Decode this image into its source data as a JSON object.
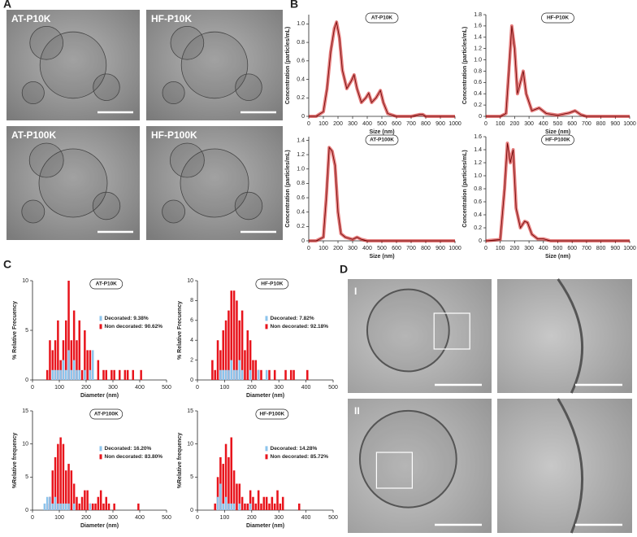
{
  "panels": {
    "A": {
      "label": "A",
      "images": [
        "AT-P10K",
        "HF-P10K",
        "AT-P100K",
        "HF-P100K"
      ]
    },
    "B": {
      "label": "B"
    },
    "C": {
      "label": "C"
    },
    "D": {
      "label": "D",
      "rows": [
        "I",
        "II"
      ]
    }
  },
  "chart_data": [
    {
      "type": "line",
      "title": "AT-P10K",
      "xlabel": "Size (nm)",
      "ylabel": "Concentration (particles/mL)",
      "color": "#d01010",
      "x": [
        0,
        50,
        100,
        125,
        150,
        175,
        190,
        210,
        230,
        260,
        290,
        310,
        330,
        360,
        390,
        410,
        430,
        460,
        490,
        510,
        540,
        600,
        700,
        760,
        780,
        800,
        900,
        1000
      ],
      "values": [
        0,
        0,
        0.05,
        0.3,
        0.7,
        0.95,
        1.02,
        0.85,
        0.5,
        0.3,
        0.38,
        0.45,
        0.3,
        0.15,
        0.2,
        0.25,
        0.15,
        0.2,
        0.28,
        0.15,
        0.03,
        0,
        0,
        0.02,
        0.02,
        0,
        0,
        0
      ],
      "xlim": [
        0,
        1000
      ],
      "xticks": [
        0,
        100,
        200,
        300,
        400,
        500,
        600,
        700,
        800,
        900,
        1000
      ],
      "ylim": [
        0,
        1.1
      ],
      "yticks": [
        0,
        0.2,
        0.4,
        0.6,
        0.8,
        {
          "value": 1,
          "label": "1.0"
        }
      ]
    },
    {
      "type": "line",
      "title": "HF-P10K",
      "xlabel": "Size (nm)",
      "ylabel": "Concentration (particles/mL)",
      "color": "#d01010",
      "x": [
        0,
        100,
        140,
        160,
        180,
        200,
        220,
        240,
        260,
        280,
        320,
        370,
        420,
        500,
        580,
        620,
        660,
        700,
        800,
        1000
      ],
      "values": [
        0,
        0,
        0.05,
        0.8,
        1.6,
        1.2,
        0.4,
        0.6,
        0.8,
        0.4,
        0.1,
        0.15,
        0.05,
        0.02,
        0.06,
        0.1,
        0.03,
        0,
        0,
        0
      ],
      "xlim": [
        0,
        1000
      ],
      "xticks": [
        0,
        100,
        200,
        300,
        400,
        500,
        600,
        700,
        800,
        900,
        1000
      ],
      "ylim": [
        0,
        1.8
      ],
      "yticks": [
        0,
        0.2,
        0.4,
        0.6,
        0.8,
        {
          "value": 1,
          "label": "1.0"
        },
        1.2,
        1.4,
        1.6,
        1.8
      ]
    },
    {
      "type": "line",
      "title": "AT-P100K",
      "xlabel": "Size (nm)",
      "ylabel": "Concentration (particles/mL)",
      "color": "#d01010",
      "x": [
        0,
        50,
        100,
        120,
        140,
        160,
        180,
        200,
        220,
        250,
        300,
        330,
        360,
        400,
        500,
        700,
        1000
      ],
      "values": [
        0,
        0,
        0.05,
        0.6,
        1.3,
        1.25,
        1.05,
        0.4,
        0.1,
        0.05,
        0.02,
        0.05,
        0.02,
        0,
        0,
        0,
        0
      ],
      "xlim": [
        0,
        1000
      ],
      "xticks": [
        0,
        100,
        200,
        300,
        400,
        500,
        600,
        700,
        800,
        900,
        1000
      ],
      "ylim": [
        0,
        1.45
      ],
      "yticks": [
        0,
        0.2,
        0.4,
        0.6,
        0.8,
        {
          "value": 1,
          "label": "1.0"
        },
        1.2,
        1.4
      ]
    },
    {
      "type": "line",
      "title": "HF-P100K",
      "xlabel": "Size (nm)",
      "ylabel": "Concentration (particles/mL)",
      "color": "#d01010",
      "x": [
        0,
        100,
        130,
        150,
        170,
        190,
        210,
        240,
        270,
        290,
        320,
        360,
        400,
        450,
        550,
        1000
      ],
      "values": [
        0,
        0.02,
        0.8,
        1.5,
        1.2,
        1.4,
        0.5,
        0.2,
        0.3,
        0.28,
        0.1,
        0.03,
        0.03,
        0,
        0,
        0
      ],
      "xlim": [
        0,
        1000
      ],
      "xticks": [
        0,
        100,
        200,
        300,
        400,
        500,
        600,
        700,
        800,
        900,
        1000
      ],
      "ylim": [
        0,
        1.6
      ],
      "yticks": [
        0,
        0.2,
        0.4,
        0.6,
        0.8,
        {
          "value": 1,
          "label": "1.0"
        },
        1.2,
        1.4,
        1.6
      ]
    },
    {
      "type": "histogram",
      "title": "AT-P10K",
      "xlabel": "Diameter (nm)",
      "ylabel": "% Relative Frecuency",
      "bins": [
        40,
        50,
        60,
        70,
        80,
        90,
        100,
        110,
        120,
        130,
        140,
        150,
        160,
        170,
        180,
        190,
        200,
        210,
        220,
        230,
        240,
        250,
        260,
        270,
        280,
        290,
        300,
        310,
        320,
        330,
        340,
        350,
        360,
        370,
        380,
        390,
        400,
        410,
        420
      ],
      "series": [
        {
          "name": "Non decorated: 90.62%",
          "color": "#e8141c",
          "values": [
            0,
            1,
            4,
            3,
            4,
            6,
            2,
            4,
            6,
            10,
            4,
            7,
            4,
            6,
            1,
            5,
            3,
            3,
            2,
            0,
            2,
            0,
            1,
            1,
            0,
            1,
            1,
            0,
            1,
            0,
            1,
            1,
            0,
            1,
            0,
            0,
            1,
            0
          ]
        },
        {
          "name": "Decorated: 9.38%",
          "color": "#8cc4ec",
          "values": [
            0,
            0,
            0,
            1,
            1,
            1,
            1,
            2,
            1,
            3,
            1,
            2,
            1,
            1,
            0,
            1,
            0,
            1,
            3,
            0,
            0,
            0,
            0,
            0,
            0,
            0,
            0,
            0,
            0,
            0,
            0,
            0,
            0,
            0,
            0,
            0,
            0,
            0
          ]
        }
      ],
      "xlim": [
        0,
        500
      ],
      "xticks": [
        0,
        100,
        200,
        300,
        400,
        500
      ],
      "ylim": [
        0,
        10
      ],
      "yticks": [
        0,
        5,
        10
      ]
    },
    {
      "type": "histogram",
      "title": "HF-P10K",
      "xlabel": "Diameter (nm)",
      "ylabel": "% Relative Frecuency",
      "bins": [
        40,
        50,
        60,
        70,
        80,
        90,
        100,
        110,
        120,
        130,
        140,
        150,
        160,
        170,
        180,
        190,
        200,
        210,
        220,
        230,
        240,
        250,
        260,
        270,
        280,
        290,
        300,
        310,
        320,
        330,
        340,
        350,
        360,
        370,
        380,
        390,
        400,
        410,
        420
      ],
      "series": [
        {
          "name": "Non decorated: 92.18%",
          "color": "#e8141c",
          "values": [
            0,
            2,
            1,
            4,
            3,
            5,
            6,
            7,
            9,
            9,
            8,
            6,
            7,
            3,
            5,
            4,
            2,
            2,
            1,
            1,
            0,
            0,
            1,
            0,
            1,
            0,
            0,
            0,
            1,
            0,
            1,
            1,
            0,
            0,
            0,
            0,
            1,
            0
          ]
        },
        {
          "name": "Decorated: 7.82%",
          "color": "#8cc4ec",
          "values": [
            0,
            0,
            0,
            0,
            1,
            1,
            1,
            1,
            2,
            1,
            1,
            2,
            1,
            0,
            0,
            1,
            0,
            0,
            1,
            0,
            0,
            1,
            0,
            0,
            0,
            0,
            0,
            0,
            0,
            0,
            0,
            0,
            0,
            0,
            0,
            0,
            0,
            0
          ]
        }
      ],
      "xlim": [
        0,
        500
      ],
      "xticks": [
        0,
        100,
        200,
        300,
        400,
        500
      ],
      "ylim": [
        0,
        10
      ],
      "yticks": [
        0,
        2,
        4,
        6,
        8,
        10
      ]
    },
    {
      "type": "histogram",
      "title": "AT-P100K",
      "xlabel": "Diameter (nm)",
      "ylabel": "%Relative frequency",
      "bins": [
        40,
        50,
        60,
        70,
        80,
        90,
        100,
        110,
        120,
        130,
        140,
        150,
        160,
        170,
        180,
        190,
        200,
        210,
        220,
        230,
        240,
        250,
        260,
        270,
        280,
        290,
        300,
        310,
        320,
        330,
        340,
        350,
        360,
        370,
        380,
        390,
        400,
        410,
        420
      ],
      "series": [
        {
          "name": "Non decorated: 83.80%",
          "color": "#e8141c",
          "values": [
            0,
            1,
            2,
            6,
            8,
            10,
            11,
            10,
            6,
            7,
            6,
            4,
            2,
            1,
            2,
            3,
            3,
            1,
            1,
            1,
            2,
            3,
            1,
            2,
            1,
            0,
            1,
            0,
            0,
            0,
            0,
            0,
            0,
            0,
            0,
            1,
            0,
            0
          ]
        },
        {
          "name": "Decorated: 16.20%",
          "color": "#8cc4ec",
          "values": [
            1,
            2,
            2,
            1,
            2,
            1,
            1,
            1,
            1,
            1,
            0,
            1,
            0,
            0,
            0,
            0,
            0,
            1,
            0,
            0,
            0,
            0,
            0,
            0,
            0,
            0,
            0,
            0,
            0,
            0,
            0,
            0,
            0,
            0,
            0,
            0,
            0,
            0
          ]
        }
      ],
      "xlim": [
        0,
        500
      ],
      "xticks": [
        0,
        100,
        200,
        300,
        400,
        500
      ],
      "ylim": [
        0,
        15
      ],
      "yticks": [
        0,
        5,
        10,
        15
      ]
    },
    {
      "type": "histogram",
      "title": "HF-P100K",
      "xlabel": "Diameter (nm)",
      "ylabel": "%Relative frequency",
      "bins": [
        40,
        50,
        60,
        70,
        80,
        90,
        100,
        110,
        120,
        130,
        140,
        150,
        160,
        170,
        180,
        190,
        200,
        210,
        220,
        230,
        240,
        250,
        260,
        270,
        280,
        290,
        300,
        310,
        320,
        330,
        340,
        350,
        360,
        370,
        380,
        390,
        400,
        410,
        420
      ],
      "series": [
        {
          "name": "Non decorated: 85.72%",
          "color": "#e8141c",
          "values": [
            0,
            0,
            1,
            5,
            8,
            7,
            10,
            8,
            11,
            6,
            4,
            4,
            2,
            1,
            1,
            3,
            2,
            1,
            3,
            1,
            2,
            2,
            1,
            2,
            1,
            3,
            1,
            2,
            0,
            0,
            0,
            0,
            0,
            1,
            0,
            0,
            0,
            0
          ]
        },
        {
          "name": "Decorated: 14.28%",
          "color": "#8cc4ec",
          "values": [
            0,
            0,
            0,
            2,
            4,
            1,
            2,
            1,
            1,
            1,
            0,
            1,
            0,
            0,
            0,
            1,
            0,
            0,
            0,
            0,
            0,
            0,
            0,
            0,
            0,
            0,
            0,
            0,
            0,
            0,
            0,
            0,
            0,
            0,
            0,
            0,
            0,
            0
          ]
        }
      ],
      "xlim": [
        0,
        500
      ],
      "xticks": [
        0,
        100,
        200,
        300,
        400,
        500
      ],
      "ylim": [
        0,
        15
      ],
      "yticks": [
        0,
        5,
        10,
        15
      ]
    }
  ]
}
